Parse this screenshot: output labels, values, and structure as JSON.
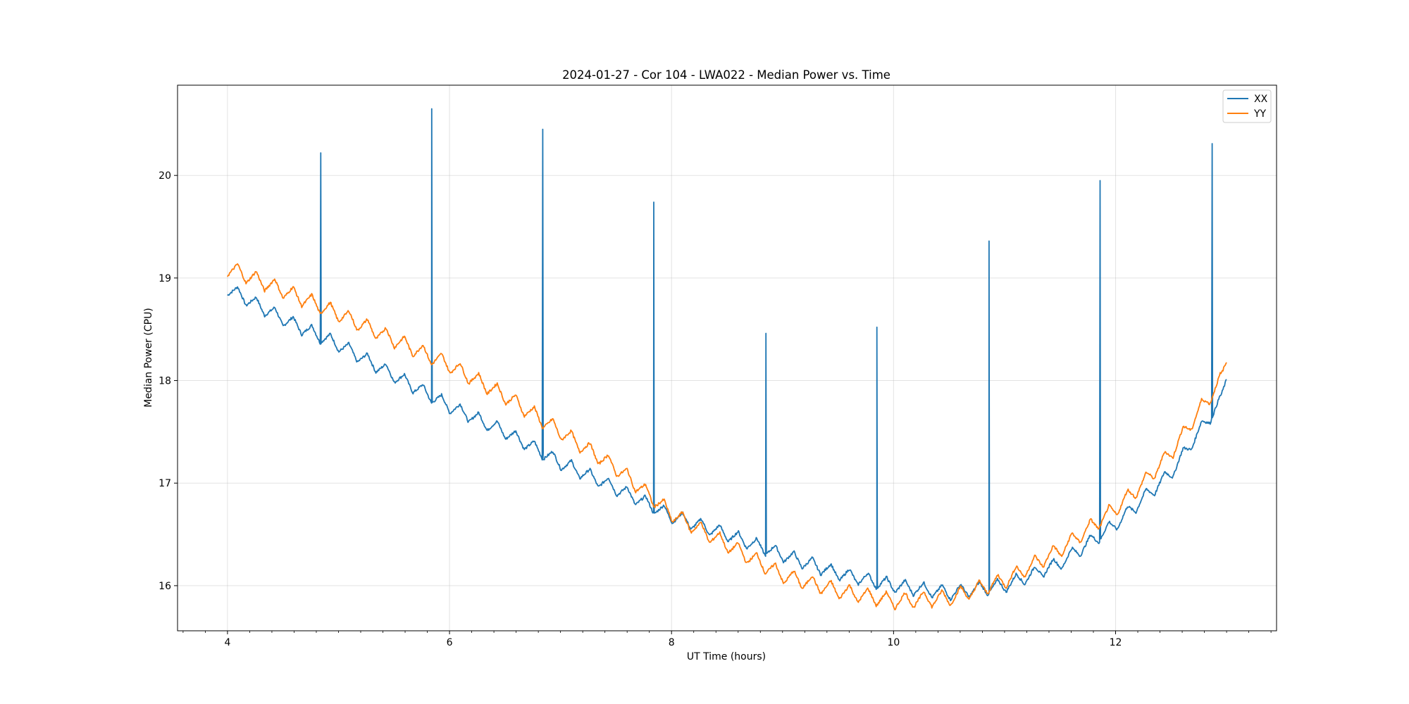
{
  "chart_data": {
    "type": "line",
    "title": "2024-01-27 - Cor 104 - LWA022 - Median Power vs. Time",
    "xlabel": "UT Time (hours)",
    "ylabel": "Median Power (CPU)",
    "xlim": [
      3.55,
      13.45
    ],
    "ylim": [
      15.56,
      20.88
    ],
    "xticks": [
      4,
      6,
      8,
      10,
      12
    ],
    "xtick_labels": [
      "4",
      "6",
      "8",
      "10",
      "12"
    ],
    "yticks": [
      16,
      17,
      18,
      19,
      20
    ],
    "ytick_labels": [
      "16",
      "17",
      "18",
      "19",
      "20"
    ],
    "grid": true,
    "legend_position": "top-right",
    "series": [
      {
        "name": "XX",
        "color": "#1f77b4",
        "ripple_period": 0.167,
        "ripple_amplitude": 0.07,
        "points": [
          [
            4.0,
            18.9
          ],
          [
            4.5,
            18.6
          ],
          [
            5.0,
            18.35
          ],
          [
            5.5,
            18.05
          ],
          [
            6.0,
            17.75
          ],
          [
            6.5,
            17.5
          ],
          [
            7.0,
            17.2
          ],
          [
            7.5,
            16.95
          ],
          [
            8.0,
            16.68
          ],
          [
            8.5,
            16.5
          ],
          [
            9.0,
            16.3
          ],
          [
            9.5,
            16.12
          ],
          [
            10.0,
            16.0
          ],
          [
            10.5,
            15.93
          ],
          [
            11.0,
            16.0
          ],
          [
            11.5,
            16.22
          ],
          [
            12.0,
            16.6
          ],
          [
            12.25,
            16.85
          ],
          [
            12.5,
            17.1
          ],
          [
            12.75,
            17.5
          ],
          [
            12.95,
            17.8
          ],
          [
            13.0,
            18.05
          ]
        ],
        "spikes": [
          [
            4.84,
            20.22
          ],
          [
            5.84,
            20.65
          ],
          [
            6.84,
            20.45
          ],
          [
            7.84,
            19.74
          ],
          [
            8.85,
            18.46
          ],
          [
            9.85,
            18.52
          ],
          [
            10.86,
            19.36
          ],
          [
            11.86,
            19.95
          ],
          [
            12.87,
            20.31
          ]
        ]
      },
      {
        "name": "YY",
        "color": "#ff7f0e",
        "ripple_period": 0.167,
        "ripple_amplitude": 0.08,
        "points": [
          [
            4.0,
            19.1
          ],
          [
            4.5,
            18.88
          ],
          [
            5.0,
            18.65
          ],
          [
            5.5,
            18.4
          ],
          [
            6.0,
            18.15
          ],
          [
            6.5,
            17.85
          ],
          [
            7.0,
            17.5
          ],
          [
            7.5,
            17.15
          ],
          [
            8.0,
            16.7
          ],
          [
            8.5,
            16.4
          ],
          [
            9.0,
            16.1
          ],
          [
            9.5,
            15.95
          ],
          [
            10.0,
            15.85
          ],
          [
            10.5,
            15.88
          ],
          [
            11.0,
            16.05
          ],
          [
            11.5,
            16.35
          ],
          [
            12.0,
            16.75
          ],
          [
            12.25,
            17.0
          ],
          [
            12.5,
            17.3
          ],
          [
            12.75,
            17.7
          ],
          [
            12.95,
            18.0
          ],
          [
            13.0,
            18.22
          ]
        ],
        "spikes": []
      }
    ]
  }
}
